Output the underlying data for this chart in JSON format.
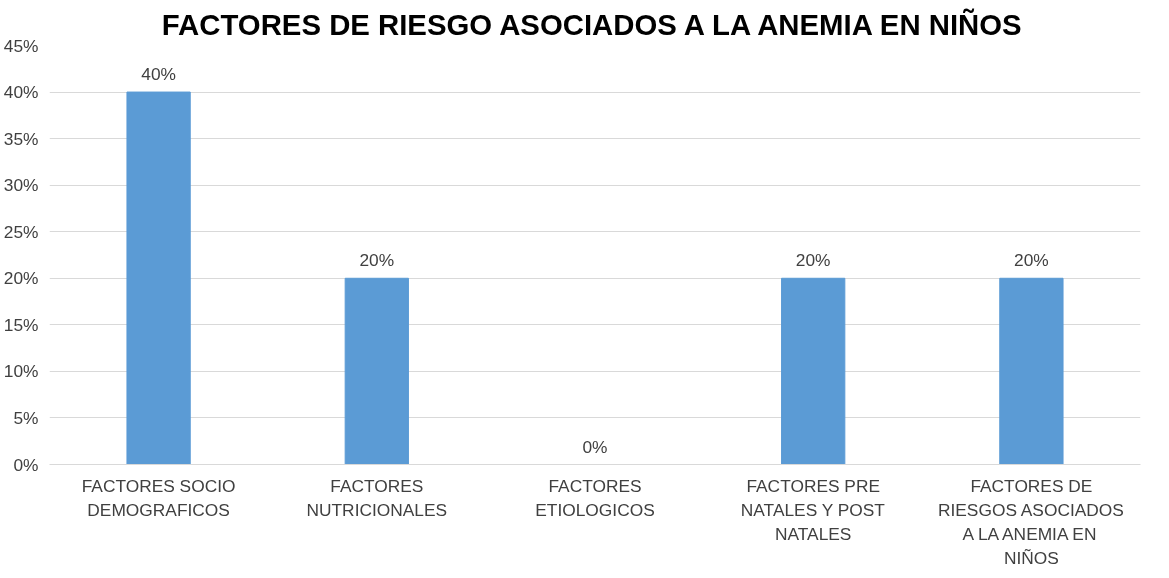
{
  "chart_data": {
    "type": "bar",
    "title": "FACTORES DE RIESGO ASOCIADOS A LA ANEMIA EN NIÑOS",
    "categories": [
      "FACTORES SOCIO DEMOGRAFICOS",
      "FACTORES NUTRICIONALES",
      "FACTORES ETIOLOGICOS",
      "FACTORES PRE NATALES Y POST NATALES",
      "FACTORES DE RIESGOS ASOCIADOS A LA ANEMIA EN NIÑOS"
    ],
    "values": [
      40,
      20,
      0,
      20,
      20
    ],
    "value_labels": [
      "40%",
      "20%",
      "0%",
      "20%",
      "20%"
    ],
    "color": "#5b9bd5",
    "ylim": [
      0,
      45
    ],
    "yticks": [
      {
        "value": 0,
        "label": "0%"
      },
      {
        "value": 5,
        "label": "5%"
      },
      {
        "value": 10,
        "label": "10%"
      },
      {
        "value": 15,
        "label": "15%"
      },
      {
        "value": 20,
        "label": "20%"
      },
      {
        "value": 25,
        "label": "25%"
      },
      {
        "value": 30,
        "label": "30%"
      },
      {
        "value": 35,
        "label": "35%"
      },
      {
        "value": 40,
        "label": "40%"
      },
      {
        "value": 45,
        "label": "45%"
      }
    ],
    "grid": "y"
  }
}
